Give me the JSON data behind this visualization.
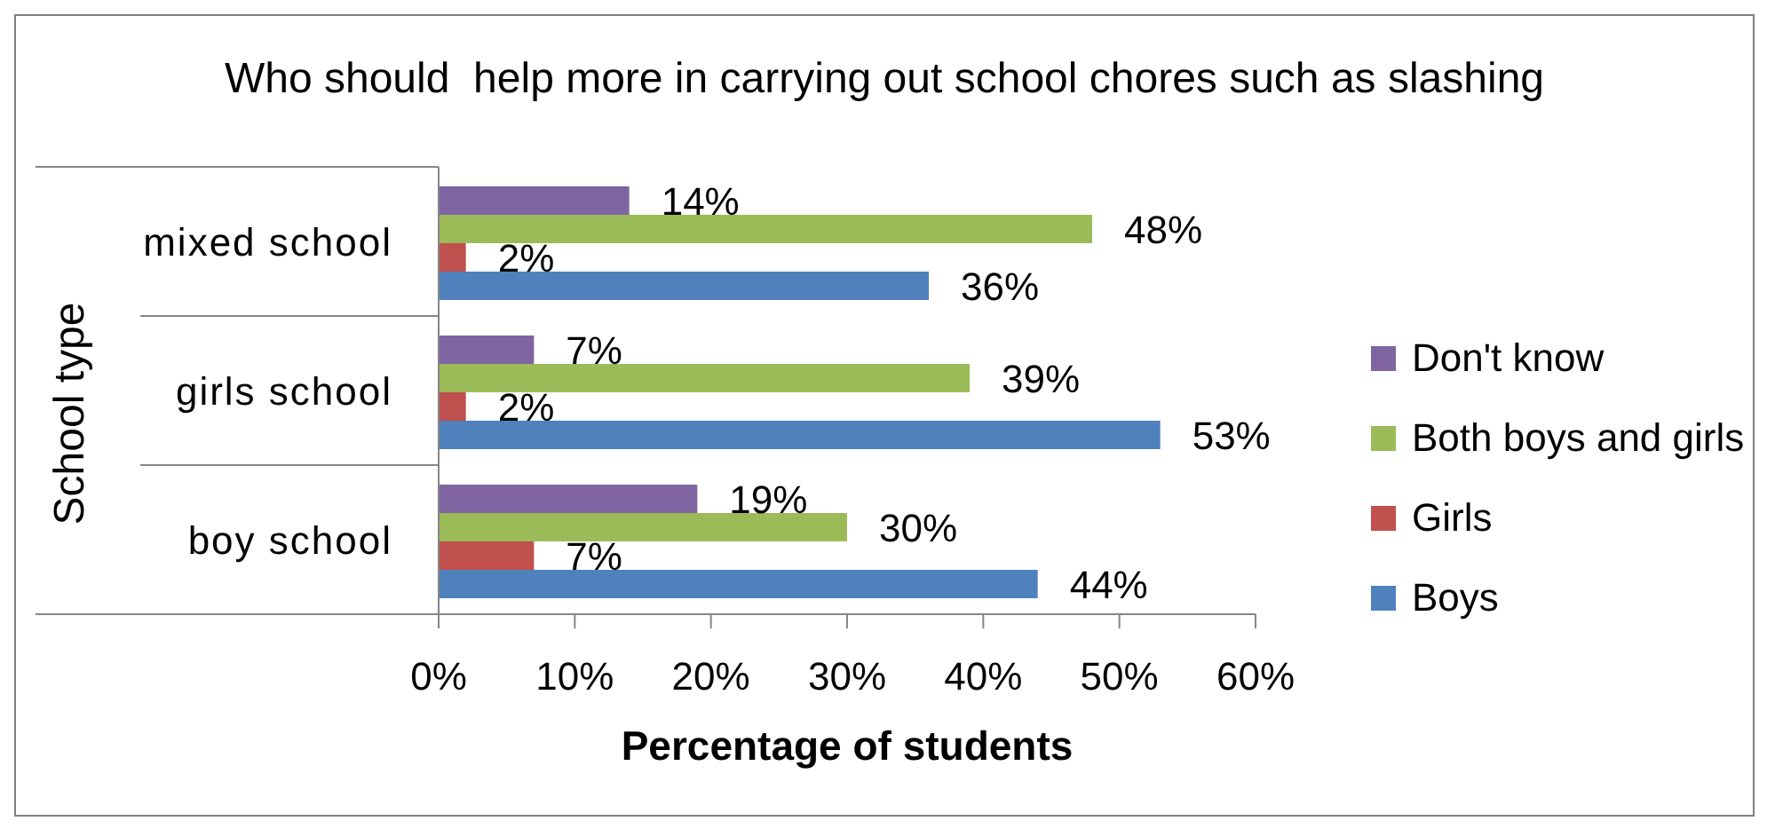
{
  "chart_data": {
    "type": "bar",
    "orientation": "horizontal",
    "title": "Who should  help more in carrying out school chores such as slashing",
    "xlabel": "Percentage of students",
    "ylabel": "School type",
    "categories": [
      "mixed school",
      "girls school",
      "boy school"
    ],
    "series": [
      {
        "name": "Don't know",
        "color": "#8064a2",
        "values": [
          14,
          7,
          19
        ],
        "value_labels": [
          "14%",
          "7%",
          "19%"
        ]
      },
      {
        "name": "Both boys and girls",
        "color": "#9bbb59",
        "values": [
          48,
          39,
          30
        ],
        "value_labels": [
          "48%",
          "39%",
          "30%"
        ]
      },
      {
        "name": "Girls",
        "color": "#c0504d",
        "values": [
          2,
          2,
          7
        ],
        "value_labels": [
          "2%",
          "2%",
          "7%"
        ]
      },
      {
        "name": "Boys",
        "color": "#4f81bd",
        "values": [
          36,
          53,
          44
        ],
        "value_labels": [
          "36%",
          "53%",
          "44%"
        ]
      }
    ],
    "xlim": [
      0,
      60
    ],
    "xticks": [
      {
        "value": 0,
        "label": "0%"
      },
      {
        "value": 10,
        "label": "10%"
      },
      {
        "value": 20,
        "label": "20%"
      },
      {
        "value": 30,
        "label": "30%"
      },
      {
        "value": 40,
        "label": "40%"
      },
      {
        "value": 50,
        "label": "50%"
      },
      {
        "value": 60,
        "label": "60%"
      }
    ],
    "legend": "right"
  }
}
